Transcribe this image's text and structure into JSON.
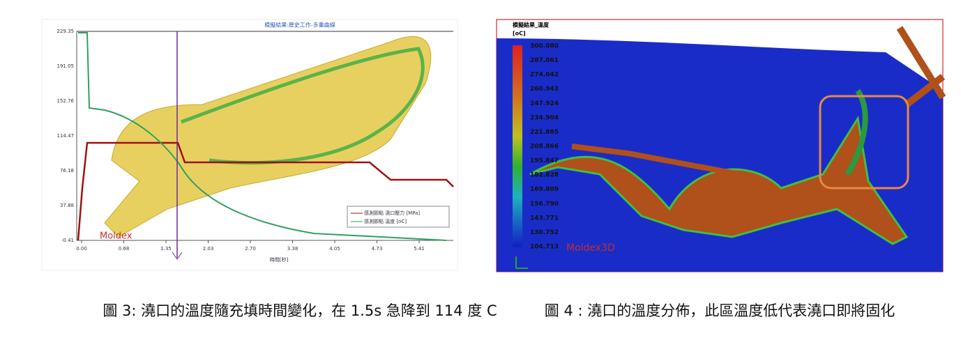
{
  "figure_left": {
    "title": "模擬結果:歷史工作-多重曲線",
    "y_tick_labels": [
      "229.35",
      "191.05",
      "152.76",
      "114.47",
      "76.18",
      "37.88",
      "-0.41"
    ],
    "x_tick_labels": [
      "0.00",
      "0.68",
      "1.35",
      "2.03",
      "2.70",
      "3.38",
      "4.05",
      "4.73",
      "5.41"
    ],
    "x_axis_label": "時間[秒]",
    "legend": [
      "感測節點 澆口壓力 [MPa]",
      "感測節點 溫度 [oC]"
    ],
    "watermark": "Moldex",
    "caption": "圖 3: 澆口的溫度隨充填時間變化，在 1.5s 急降到 114 度 C"
  },
  "figure_right": {
    "title": "模擬結果_溫度",
    "unit": "[oC]",
    "colorbar_labels": [
      "300.080",
      "287.061",
      "274.042",
      "260.943",
      "247.924",
      "234.904",
      "221.885",
      "208.866",
      "195.847",
      "182.828",
      "169.809",
      "156.790",
      "143.771",
      "130.752",
      "104.713"
    ],
    "watermark": "Moldex3D",
    "caption": "圖 4 : 澆口的溫度分佈，此區溫度低代表澆口即將固化"
  }
}
